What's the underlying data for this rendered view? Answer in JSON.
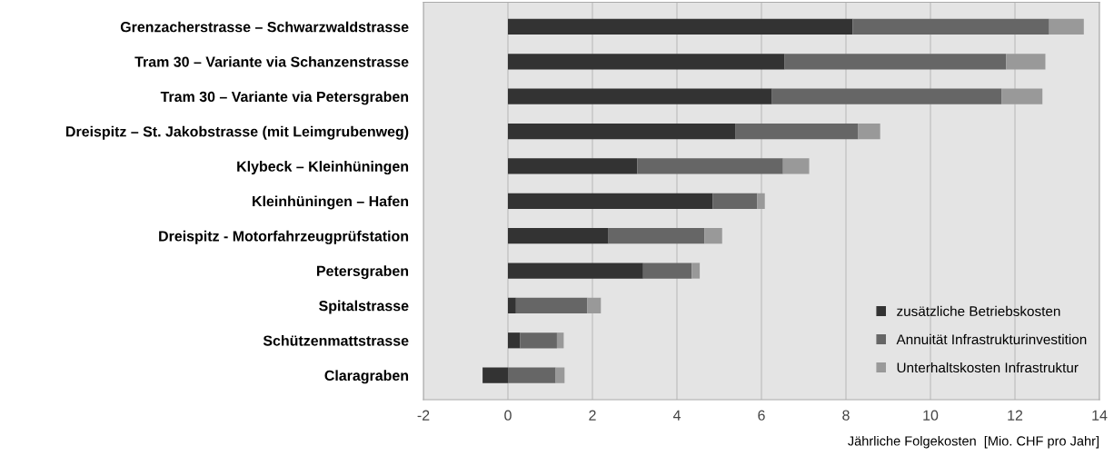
{
  "chart_data": {
    "type": "bar",
    "orientation": "horizontal",
    "stacked": true,
    "categories": [
      "Grenzacherstrasse – Schwarzwaldstrasse",
      "Tram 30 – Variante via Schanzenstrasse",
      "Tram 30 – Variante via Petersgraben",
      "Dreispitz – St. Jakobstrasse (mit Leimgrubenweg)",
      "Klybeck – Kleinhüningen",
      "Kleinhüningen – Hafen",
      "Dreispitz - Motorfahrzeugprüfstation",
      "Petersgraben",
      "Spitalstrasse",
      "Schützenmattstrasse",
      "Claragraben"
    ],
    "series": [
      {
        "name": "zusätzliche Betriebskosten",
        "color": "#333333",
        "values": [
          8.16,
          6.55,
          6.25,
          5.39,
          3.06,
          4.85,
          2.38,
          3.2,
          0.19,
          0.29,
          -0.6
        ]
      },
      {
        "name": "Annuität Infrastrukturinvestition",
        "color": "#666666",
        "values": [
          4.65,
          5.24,
          5.43,
          2.9,
          3.45,
          1.05,
          2.27,
          1.15,
          1.69,
          0.87,
          1.13
        ]
      },
      {
        "name": "Unterhaltskosten Infrastruktur",
        "color": "#999999",
        "values": [
          0.82,
          0.93,
          0.97,
          0.52,
          0.62,
          0.18,
          0.42,
          0.19,
          0.32,
          0.16,
          0.21
        ]
      }
    ],
    "xlabel": "Jährliche Folgekosten  [Mio. CHF pro Jahr]",
    "xlim": [
      -2,
      14
    ],
    "xticks": [
      -2,
      0,
      2,
      4,
      6,
      8,
      10,
      12,
      14
    ],
    "grid": "x",
    "legend": "bottom right"
  }
}
